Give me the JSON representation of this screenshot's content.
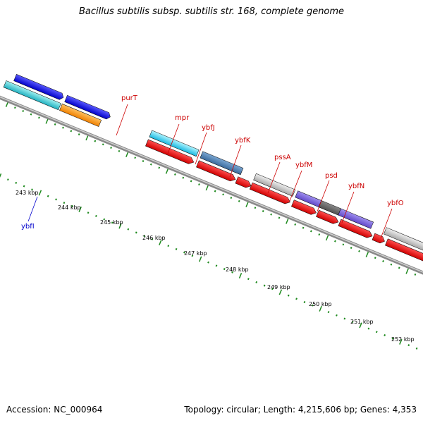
{
  "title": "Bacillus subtilis subsp. subtilis str. 168, complete genome",
  "footer": {
    "accession": "Accession: NC_000964",
    "summary": "Topology: circular; Length: 4,215,606 bp; Genes: 4,353"
  },
  "colors": {
    "background": "#ffffff",
    "backbone": "#8a8a8a",
    "tick": "#1e8a1e",
    "label_forward": "#cc0000",
    "label_reverse": "#0000cc"
  },
  "scale_labels": [
    "243 kbp",
    "244 kbp",
    "245 kbp",
    "246 kbp",
    "247 kbp",
    "248 kbp",
    "249 kbp",
    "250 kbp",
    "251 kbp",
    "252 kbp"
  ],
  "gene_labels": [
    {
      "name": "purT",
      "color": "#cc0000"
    },
    {
      "name": "mpr",
      "color": "#cc0000"
    },
    {
      "name": "ybfJ",
      "color": "#cc0000"
    },
    {
      "name": "ybfK",
      "color": "#cc0000"
    },
    {
      "name": "pssA",
      "color": "#cc0000"
    },
    {
      "name": "ybfM",
      "color": "#cc0000"
    },
    {
      "name": "psd",
      "color": "#cc0000"
    },
    {
      "name": "ybfN",
      "color": "#cc0000"
    },
    {
      "name": "ybfO",
      "color": "#cc0000"
    },
    {
      "name": "ybfI",
      "color": "#0000cc"
    }
  ]
}
